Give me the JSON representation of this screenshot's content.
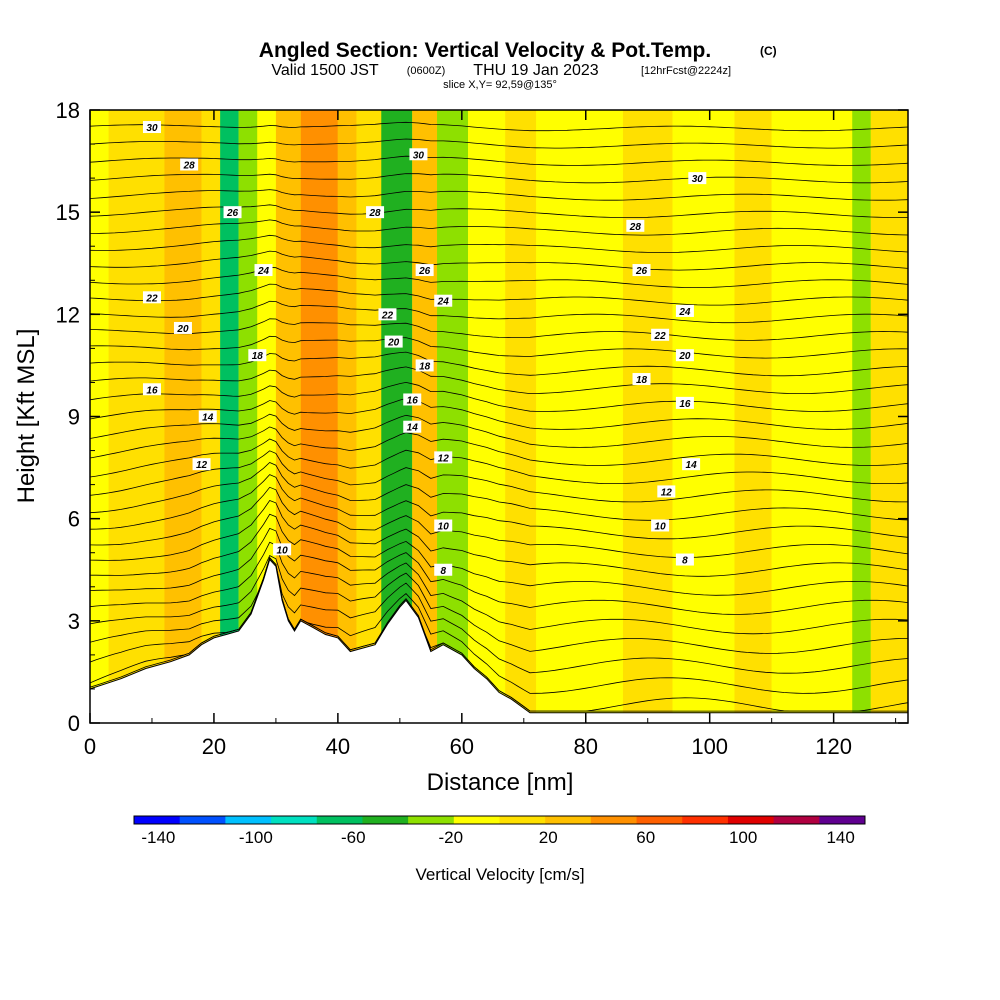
{
  "title": {
    "main": "Angled Section: Vertical Velocity & Pot.Temp.",
    "copyright": "(C)",
    "valid_prefix": "Valid 1500 JST",
    "zulu": "(0600Z)",
    "valid_date": "THU 19 Jan 2023",
    "forecast": "[12hrFcst@2224z]",
    "slice": "slice X,Y= 92,59@135°"
  },
  "chart_data": {
    "type": "heatmap",
    "xlabel": "Distance [nm]",
    "ylabel": "Height [Kft MSL]",
    "xlim": [
      0,
      132
    ],
    "ylim": [
      0,
      18
    ],
    "x_ticks": [
      "0",
      "20",
      "40",
      "60",
      "80",
      "100",
      "120"
    ],
    "y_ticks": [
      "0",
      "3",
      "6",
      "9",
      "12",
      "15",
      "18"
    ],
    "colorbar": {
      "label": "Vertical Velocity [cm/s]",
      "range": [
        -150,
        150
      ],
      "step": 20,
      "tick_labels": [
        "-140",
        "-100",
        "-60",
        "-20",
        "20",
        "60",
        "100",
        "140"
      ],
      "colors": [
        "#0000ff",
        "#0050ff",
        "#00c0ff",
        "#00e0c0",
        "#00c060",
        "#20b020",
        "#8ee000",
        "#ffff00",
        "#ffe000",
        "#ffc000",
        "#ff9000",
        "#ff6000",
        "#ff3000",
        "#e00000",
        "#b00040",
        "#600090"
      ]
    },
    "vertical_velocity_columns": [
      {
        "x": [
          0,
          3
        ],
        "value": 5
      },
      {
        "x": [
          3,
          12
        ],
        "value": 10
      },
      {
        "x": [
          12,
          18
        ],
        "value": 40
      },
      {
        "x": [
          18,
          21
        ],
        "value": 15
      },
      {
        "x": [
          21,
          24
        ],
        "value": -70
      },
      {
        "x": [
          24,
          27
        ],
        "value": -30
      },
      {
        "x": [
          27,
          30
        ],
        "value": -5
      },
      {
        "x": [
          30,
          34
        ],
        "value": 45
      },
      {
        "x": [
          34,
          40
        ],
        "value": 60
      },
      {
        "x": [
          40,
          43
        ],
        "value": 30
      },
      {
        "x": [
          43,
          47
        ],
        "value": 15
      },
      {
        "x": [
          47,
          52
        ],
        "value": -40
      },
      {
        "x": [
          52,
          56
        ],
        "value": 45
      },
      {
        "x": [
          56,
          61
        ],
        "value": -30
      },
      {
        "x": [
          61,
          67
        ],
        "value": 5
      },
      {
        "x": [
          67,
          72
        ],
        "value": 25
      },
      {
        "x": [
          72,
          86
        ],
        "value": -5
      },
      {
        "x": [
          86,
          94
        ],
        "value": 15
      },
      {
        "x": [
          94,
          104
        ],
        "value": -5
      },
      {
        "x": [
          104,
          110
        ],
        "value": 20
      },
      {
        "x": [
          110,
          123
        ],
        "value": -5
      },
      {
        "x": [
          123,
          126
        ],
        "value": -30
      },
      {
        "x": [
          126,
          132
        ],
        "value": 10
      }
    ],
    "terrain": {
      "x": [
        0,
        5,
        9,
        13,
        16,
        18,
        20,
        22,
        24,
        26,
        28,
        29,
        30,
        31,
        32,
        33,
        34,
        36,
        38,
        40,
        42,
        44,
        46,
        48,
        50,
        51,
        53,
        55,
        57,
        60,
        62,
        64,
        66,
        68,
        71,
        132
      ],
      "height": [
        1.0,
        1.3,
        1.6,
        1.8,
        2.0,
        2.3,
        2.5,
        2.6,
        2.7,
        3.2,
        4.2,
        4.8,
        4.6,
        3.6,
        3.0,
        2.7,
        3.0,
        2.8,
        2.6,
        2.5,
        2.1,
        2.2,
        2.3,
        2.9,
        3.4,
        3.6,
        3.1,
        2.1,
        2.3,
        2.0,
        1.6,
        1.3,
        0.9,
        0.7,
        0.3,
        0.3
      ]
    },
    "pot_temp_contours": {
      "levels": [
        8,
        10,
        12,
        14,
        16,
        18,
        20,
        22,
        24,
        26,
        28,
        30
      ],
      "labels": [
        {
          "text": "30",
          "x": 10,
          "y": 17.5
        },
        {
          "text": "28",
          "x": 16,
          "y": 16.4
        },
        {
          "text": "26",
          "x": 23,
          "y": 15.0
        },
        {
          "text": "24",
          "x": 28,
          "y": 13.3
        },
        {
          "text": "22",
          "x": 10,
          "y": 12.5
        },
        {
          "text": "20",
          "x": 15,
          "y": 11.6
        },
        {
          "text": "18",
          "x": 27,
          "y": 10.8
        },
        {
          "text": "16",
          "x": 10,
          "y": 9.8
        },
        {
          "text": "14",
          "x": 19,
          "y": 9.0
        },
        {
          "text": "12",
          "x": 18,
          "y": 7.6
        },
        {
          "text": "10",
          "x": 31,
          "y": 5.1
        },
        {
          "text": "30",
          "x": 53,
          "y": 16.7
        },
        {
          "text": "28",
          "x": 46,
          "y": 15.0
        },
        {
          "text": "26",
          "x": 54,
          "y": 13.3
        },
        {
          "text": "24",
          "x": 57,
          "y": 12.4
        },
        {
          "text": "22",
          "x": 48,
          "y": 12.0
        },
        {
          "text": "20",
          "x": 49,
          "y": 11.2
        },
        {
          "text": "18",
          "x": 54,
          "y": 10.5
        },
        {
          "text": "16",
          "x": 52,
          "y": 9.5
        },
        {
          "text": "14",
          "x": 52,
          "y": 8.7
        },
        {
          "text": "12",
          "x": 57,
          "y": 7.8
        },
        {
          "text": "10",
          "x": 57,
          "y": 5.8
        },
        {
          "text": "8",
          "x": 57,
          "y": 4.5
        },
        {
          "text": "30",
          "x": 98,
          "y": 16.0
        },
        {
          "text": "28",
          "x": 88,
          "y": 14.6
        },
        {
          "text": "26",
          "x": 89,
          "y": 13.3
        },
        {
          "text": "24",
          "x": 96,
          "y": 12.1
        },
        {
          "text": "22",
          "x": 92,
          "y": 11.4
        },
        {
          "text": "20",
          "x": 96,
          "y": 10.8
        },
        {
          "text": "18",
          "x": 89,
          "y": 10.1
        },
        {
          "text": "16",
          "x": 96,
          "y": 9.4
        },
        {
          "text": "14",
          "x": 97,
          "y": 7.6
        },
        {
          "text": "12",
          "x": 93,
          "y": 6.8
        },
        {
          "text": "10",
          "x": 92,
          "y": 5.8
        },
        {
          "text": "8",
          "x": 96,
          "y": 4.8
        }
      ]
    }
  }
}
